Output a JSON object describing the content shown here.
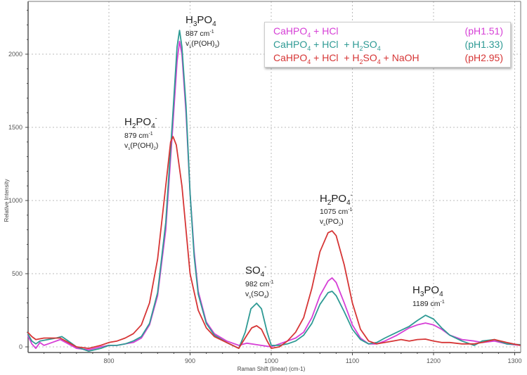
{
  "chart_data": {
    "type": "line",
    "title": "",
    "xlabel": "Raman Shift (linear) (cm-1)",
    "ylabel": "Relative Intensity",
    "xlim": [
      700,
      1307
    ],
    "ylim": [
      -40,
      2370
    ],
    "x_ticks": [
      800,
      900,
      1000,
      1100,
      1200,
      1300
    ],
    "y_ticks": [
      0,
      500,
      1000,
      1500,
      2000
    ],
    "grid": true,
    "legend_position": "top-right",
    "series": [
      {
        "name": "CaHPO4 + HCl (pH1.51)",
        "color": "#d63fd6",
        "points": [
          [
            700,
            80
          ],
          [
            705,
            20
          ],
          [
            710,
            -10
          ],
          [
            715,
            30
          ],
          [
            720,
            10
          ],
          [
            730,
            30
          ],
          [
            740,
            50
          ],
          [
            750,
            20
          ],
          [
            760,
            -10
          ],
          [
            775,
            -20
          ],
          [
            790,
            0
          ],
          [
            800,
            10
          ],
          [
            810,
            10
          ],
          [
            820,
            20
          ],
          [
            830,
            30
          ],
          [
            840,
            60
          ],
          [
            850,
            150
          ],
          [
            860,
            350
          ],
          [
            870,
            800
          ],
          [
            878,
            1450
          ],
          [
            884,
            1950
          ],
          [
            887,
            2087
          ],
          [
            890,
            2000
          ],
          [
            895,
            1600
          ],
          [
            900,
            1050
          ],
          [
            905,
            650
          ],
          [
            910,
            380
          ],
          [
            920,
            170
          ],
          [
            930,
            90
          ],
          [
            945,
            40
          ],
          [
            960,
            10
          ],
          [
            970,
            25
          ],
          [
            982,
            15
          ],
          [
            1000,
            0
          ],
          [
            1010,
            20
          ],
          [
            1020,
            40
          ],
          [
            1030,
            60
          ],
          [
            1040,
            100
          ],
          [
            1050,
            200
          ],
          [
            1060,
            350
          ],
          [
            1070,
            450
          ],
          [
            1075,
            471
          ],
          [
            1080,
            440
          ],
          [
            1090,
            300
          ],
          [
            1100,
            150
          ],
          [
            1110,
            60
          ],
          [
            1120,
            20
          ],
          [
            1130,
            20
          ],
          [
            1140,
            40
          ],
          [
            1155,
            80
          ],
          [
            1170,
            130
          ],
          [
            1180,
            150
          ],
          [
            1190,
            163
          ],
          [
            1200,
            150
          ],
          [
            1210,
            120
          ],
          [
            1220,
            80
          ],
          [
            1235,
            50
          ],
          [
            1250,
            40
          ],
          [
            1260,
            30
          ],
          [
            1275,
            40
          ],
          [
            1290,
            20
          ],
          [
            1307,
            10
          ]
        ]
      },
      {
        "name": "CaHPO4 + HCl + H2SO4 (pH1.33)",
        "color": "#2e9a94",
        "points": [
          [
            700,
            90
          ],
          [
            705,
            40
          ],
          [
            710,
            20
          ],
          [
            715,
            40
          ],
          [
            725,
            50
          ],
          [
            735,
            60
          ],
          [
            742,
            70
          ],
          [
            750,
            40
          ],
          [
            760,
            0
          ],
          [
            775,
            -30
          ],
          [
            790,
            -10
          ],
          [
            800,
            10
          ],
          [
            810,
            10
          ],
          [
            820,
            20
          ],
          [
            830,
            40
          ],
          [
            840,
            70
          ],
          [
            850,
            160
          ],
          [
            860,
            370
          ],
          [
            870,
            850
          ],
          [
            878,
            1520
          ],
          [
            884,
            2050
          ],
          [
            887,
            2163
          ],
          [
            890,
            2050
          ],
          [
            895,
            1650
          ],
          [
            900,
            1050
          ],
          [
            905,
            620
          ],
          [
            910,
            360
          ],
          [
            920,
            160
          ],
          [
            930,
            80
          ],
          [
            945,
            30
          ],
          [
            960,
            -10
          ],
          [
            968,
            100
          ],
          [
            975,
            260
          ],
          [
            982,
            298
          ],
          [
            988,
            260
          ],
          [
            995,
            100
          ],
          [
            1000,
            10
          ],
          [
            1010,
            10
          ],
          [
            1020,
            20
          ],
          [
            1030,
            40
          ],
          [
            1040,
            80
          ],
          [
            1050,
            160
          ],
          [
            1060,
            290
          ],
          [
            1070,
            370
          ],
          [
            1075,
            380
          ],
          [
            1080,
            350
          ],
          [
            1090,
            240
          ],
          [
            1100,
            120
          ],
          [
            1110,
            50
          ],
          [
            1120,
            20
          ],
          [
            1130,
            30
          ],
          [
            1140,
            60
          ],
          [
            1155,
            100
          ],
          [
            1170,
            140
          ],
          [
            1180,
            180
          ],
          [
            1190,
            216
          ],
          [
            1200,
            190
          ],
          [
            1210,
            130
          ],
          [
            1220,
            80
          ],
          [
            1235,
            40
          ],
          [
            1250,
            10
          ],
          [
            1260,
            40
          ],
          [
            1275,
            50
          ],
          [
            1290,
            20
          ],
          [
            1307,
            15
          ]
        ]
      },
      {
        "name": "CaHPO4 + HCl + H2SO4 + NaOH (pH2.95)",
        "color": "#d63535",
        "points": [
          [
            700,
            100
          ],
          [
            705,
            70
          ],
          [
            710,
            50
          ],
          [
            720,
            60
          ],
          [
            740,
            60
          ],
          [
            750,
            30
          ],
          [
            760,
            0
          ],
          [
            775,
            -10
          ],
          [
            790,
            10
          ],
          [
            800,
            30
          ],
          [
            810,
            40
          ],
          [
            820,
            60
          ],
          [
            830,
            90
          ],
          [
            840,
            150
          ],
          [
            850,
            300
          ],
          [
            860,
            600
          ],
          [
            870,
            1100
          ],
          [
            876,
            1400
          ],
          [
            879,
            1437
          ],
          [
            883,
            1380
          ],
          [
            890,
            1100
          ],
          [
            895,
            800
          ],
          [
            900,
            500
          ],
          [
            910,
            250
          ],
          [
            920,
            130
          ],
          [
            930,
            70
          ],
          [
            945,
            30
          ],
          [
            960,
            -10
          ],
          [
            970,
            80
          ],
          [
            976,
            130
          ],
          [
            982,
            144
          ],
          [
            988,
            120
          ],
          [
            995,
            40
          ],
          [
            1000,
            -10
          ],
          [
            1010,
            0
          ],
          [
            1020,
            40
          ],
          [
            1030,
            100
          ],
          [
            1040,
            200
          ],
          [
            1050,
            400
          ],
          [
            1060,
            650
          ],
          [
            1070,
            780
          ],
          [
            1075,
            793
          ],
          [
            1080,
            760
          ],
          [
            1090,
            560
          ],
          [
            1100,
            300
          ],
          [
            1110,
            120
          ],
          [
            1120,
            40
          ],
          [
            1130,
            20
          ],
          [
            1140,
            30
          ],
          [
            1150,
            40
          ],
          [
            1160,
            50
          ],
          [
            1170,
            40
          ],
          [
            1180,
            50
          ],
          [
            1190,
            53
          ],
          [
            1200,
            40
          ],
          [
            1210,
            30
          ],
          [
            1220,
            30
          ],
          [
            1235,
            20
          ],
          [
            1250,
            20
          ],
          [
            1260,
            30
          ],
          [
            1275,
            50
          ],
          [
            1290,
            30
          ],
          [
            1307,
            10
          ]
        ]
      }
    ],
    "annotations": [
      {
        "species": "H3PO4",
        "wavenumber": "887 cm-1",
        "mode": "v.(P(OH).)"
      },
      {
        "species": "H2PO4-",
        "wavenumber": "879 cm-1",
        "mode": "v.(P(OH).)"
      },
      {
        "species": "SO4-",
        "wavenumber": "982 cm-1",
        "mode": "v.(SO.)"
      },
      {
        "species": "H2PO4-",
        "wavenumber": "1075 cm-1",
        "mode": "v.(PO.)"
      },
      {
        "species": "H3PO4",
        "wavenumber": "1189 cm-1",
        "mode": ""
      }
    ]
  },
  "legend": {
    "entries": [
      {
        "formula": "CaHPO4 + HCl",
        "ph": "(pH1.51)",
        "color": "#d63fd6"
      },
      {
        "formula": "CaHPO4 + HCl + H2SO4",
        "ph": "(pH1.33)",
        "color": "#2e9a94"
      },
      {
        "formula": "CaHPO4 + HCl + H2SO4 + NaOH",
        "ph": "(pH2.95)",
        "color": "#d63535"
      }
    ]
  }
}
